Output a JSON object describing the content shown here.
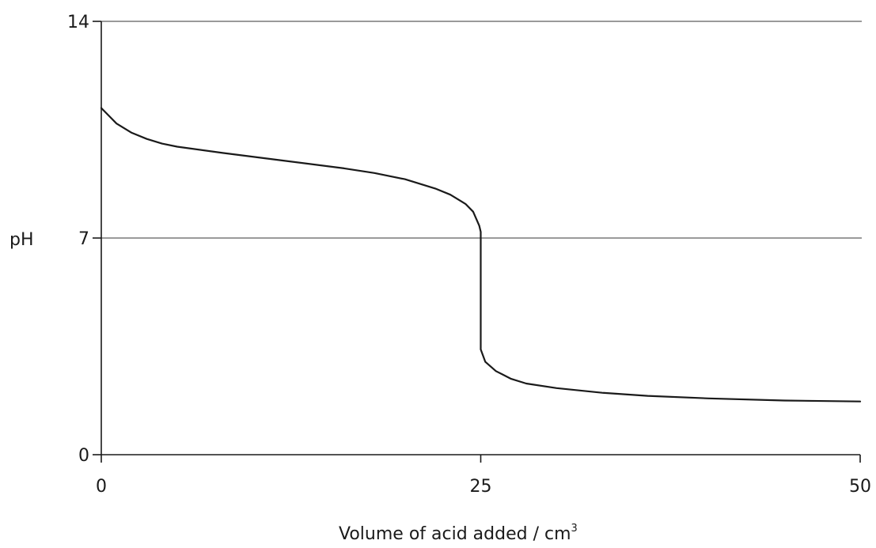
{
  "chart_data": {
    "type": "line",
    "title": "",
    "xlabel": "Volume of acid added / cm",
    "xlabel_superscript": "3",
    "ylabel": "pH",
    "xlim": [
      0,
      50
    ],
    "ylim": [
      0,
      14
    ],
    "x_ticks": [
      "0",
      "25",
      "50"
    ],
    "y_ticks": [
      "0",
      "7",
      "14"
    ],
    "gridlines_y": [
      7,
      14
    ],
    "grid": "horizontal at 7 and 14",
    "series": [
      {
        "line_color": "#1a1a1a",
        "points": [
          [
            0,
            11.2
          ],
          [
            0.5,
            10.95
          ],
          [
            1,
            10.7
          ],
          [
            2,
            10.4
          ],
          [
            3,
            10.2
          ],
          [
            4,
            10.05
          ],
          [
            5,
            9.95
          ],
          [
            8,
            9.75
          ],
          [
            12,
            9.5
          ],
          [
            16,
            9.25
          ],
          [
            18,
            9.1
          ],
          [
            20,
            8.9
          ],
          [
            22,
            8.6
          ],
          [
            23,
            8.4
          ],
          [
            24,
            8.1
          ],
          [
            24.5,
            7.85
          ],
          [
            24.9,
            7.4
          ],
          [
            25,
            7.2
          ],
          [
            25,
            3.4
          ],
          [
            25.3,
            3.0
          ],
          [
            26,
            2.7
          ],
          [
            27,
            2.45
          ],
          [
            28,
            2.3
          ],
          [
            30,
            2.15
          ],
          [
            33,
            2.0
          ],
          [
            36,
            1.9
          ],
          [
            40,
            1.82
          ],
          [
            45,
            1.75
          ],
          [
            50,
            1.72
          ]
        ]
      }
    ],
    "colors": {
      "axis": "#1a1a1a",
      "grid": "#9a9a9a",
      "curve": "#1a1a1a"
    }
  }
}
